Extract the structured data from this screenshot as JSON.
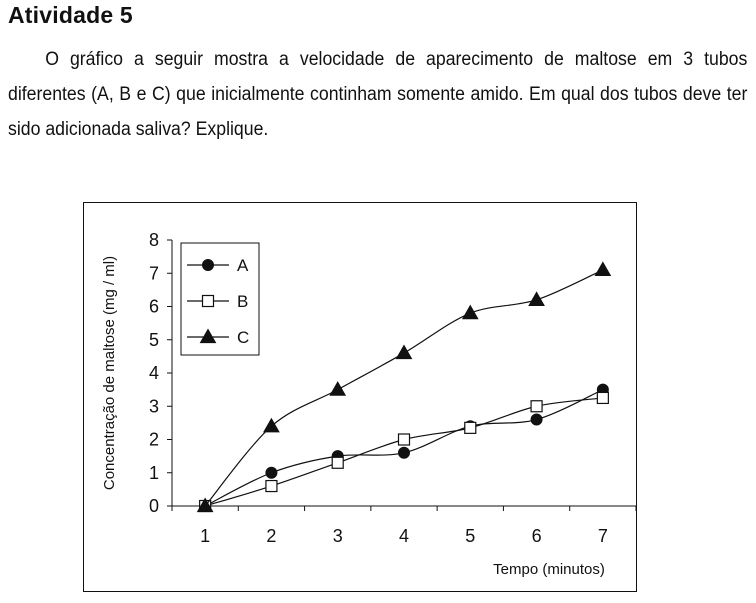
{
  "document": {
    "heading": "Atividade 5",
    "paragraph": "O gráfico a seguir mostra a velocidade de aparecimento de maltose em 3 tubos diferentes (A, B e C) que inicialmente continham somente amido. Em qual dos tubos deve ter sido adicionada saliva? Explique."
  },
  "chart_data": {
    "type": "line",
    "title": "",
    "xlabel": "Tempo (minutos)",
    "ylabel": "Concentração de maltose (mg / ml)",
    "x": [
      1,
      2,
      3,
      4,
      5,
      6,
      7
    ],
    "xticks": [
      "1",
      "2",
      "3",
      "4",
      "5",
      "6",
      "7"
    ],
    "yticks": [
      "0",
      "1",
      "2",
      "3",
      "4",
      "5",
      "6",
      "7",
      "8"
    ],
    "ylim": [
      0,
      8
    ],
    "xlim": [
      0.5,
      7.5
    ],
    "grid": false,
    "legend_position": "top-left",
    "series": [
      {
        "name": "A",
        "marker": "filled-circle",
        "values": [
          0,
          1.0,
          1.5,
          1.6,
          2.4,
          2.6,
          3.5
        ]
      },
      {
        "name": "B",
        "marker": "open-square",
        "values": [
          0,
          0.6,
          1.3,
          2.0,
          2.35,
          3.0,
          3.25
        ]
      },
      {
        "name": "C",
        "marker": "filled-triangle",
        "values": [
          0,
          2.4,
          3.5,
          4.6,
          5.8,
          6.2,
          7.1
        ]
      }
    ],
    "colors": {
      "line": "#111111",
      "marker": "#111111",
      "background": "#ffffff"
    }
  }
}
